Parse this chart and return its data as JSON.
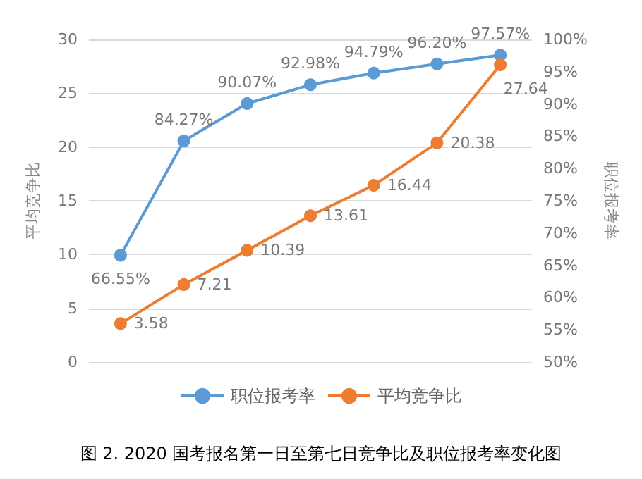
{
  "chart_data": {
    "type": "line",
    "categories": [
      null,
      null,
      null,
      null,
      null,
      null,
      null
    ],
    "ylabel": "平均竞争比",
    "y2label": "职位报考率",
    "ylim": [
      0,
      30
    ],
    "yticks": [
      0,
      5,
      10,
      15,
      20,
      25,
      30
    ],
    "y2lim": [
      50,
      100
    ],
    "y2ticks": [
      {
        "value": 50,
        "label": "50%"
      },
      {
        "value": 55,
        "label": "55%"
      },
      {
        "value": 60,
        "label": "60%"
      },
      {
        "value": 65,
        "label": "65%"
      },
      {
        "value": 70,
        "label": "70%"
      },
      {
        "value": 75,
        "label": "75%"
      },
      {
        "value": 80,
        "label": "80%"
      },
      {
        "value": 85,
        "label": "85%"
      },
      {
        "value": 90,
        "label": "90%"
      },
      {
        "value": 95,
        "label": "95%"
      },
      {
        "value": 100,
        "label": "100%"
      }
    ],
    "series": [
      {
        "name": "职位报考率",
        "color": "#5b9bd5",
        "axis": "y2",
        "values": [
          66.55,
          84.27,
          90.07,
          92.98,
          94.79,
          96.2,
          97.57
        ],
        "value_labels": [
          "66.55%",
          "84.27%",
          "90.07%",
          "92.98%",
          "94.79%",
          "96.20%",
          "97.57%"
        ]
      },
      {
        "name": "平均竞争比",
        "color": "#ed7d31",
        "axis": "y",
        "values": [
          3.58,
          7.21,
          10.39,
          13.61,
          16.44,
          20.38,
          27.64
        ],
        "value_labels": [
          "3.58",
          "7.21",
          "10.39",
          "13.61",
          "16.44",
          "20.38",
          "27.64"
        ]
      }
    ],
    "grid": "y",
    "legend": "bottom",
    "marker": "circle",
    "line_style": "solid",
    "annotations": [
      "图 2. 2020 国考报名第一日至第七日竞争比及职位报考率变化图"
    ]
  }
}
